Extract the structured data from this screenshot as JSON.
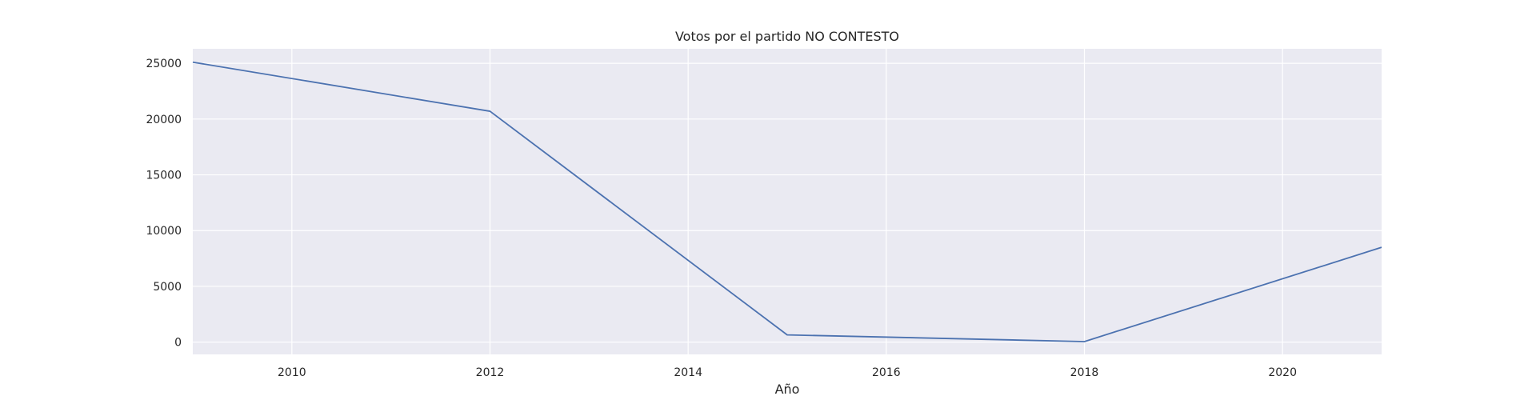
{
  "colors": {
    "plot_background": "#eaeaf2",
    "grid": "#ffffff",
    "line": "#4c72b0",
    "text": "#262626"
  },
  "chart_data": {
    "type": "line",
    "title": "Votos por el partido NO CONTESTO",
    "xlabel": "Año",
    "ylabel": "",
    "x": [
      2009,
      2012,
      2015,
      2018,
      2021
    ],
    "series": [
      {
        "values": [
          25100,
          20700,
          650,
          50,
          8500
        ]
      }
    ],
    "xlim": [
      2009,
      2021
    ],
    "ylim": [
      -1100,
      26300
    ],
    "xticks": [
      2010,
      2012,
      2014,
      2016,
      2018,
      2020
    ],
    "yticks": [
      0,
      5000,
      10000,
      15000,
      20000,
      25000
    ],
    "grid": true,
    "legend": false
  }
}
